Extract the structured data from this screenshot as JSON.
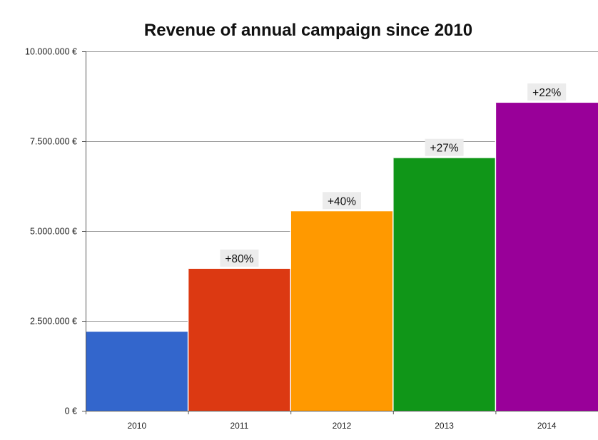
{
  "chart_data": {
    "type": "bar",
    "title": "Revenue of annual campaign since 2010",
    "xlabel": "",
    "ylabel": "",
    "categories": [
      "2010",
      "2011",
      "2012",
      "2013",
      "2014"
    ],
    "values": [
      2200000,
      3950000,
      5550000,
      7030000,
      8570000
    ],
    "bar_colors": [
      "#3366cc",
      "#dc3912",
      "#ff9900",
      "#109618",
      "#990099"
    ],
    "annotations": [
      "",
      "+80%",
      "+40%",
      "+27%",
      "+22%"
    ],
    "ylim": [
      0,
      10000000
    ],
    "yticks": [
      0,
      2500000,
      5000000,
      7500000,
      10000000
    ],
    "ytick_labels": [
      "0 €",
      "2.500.000  €",
      "5.000.000  €",
      "7.500.000  €",
      "10.000.000  €"
    ],
    "grid": true,
    "legend": "none"
  }
}
